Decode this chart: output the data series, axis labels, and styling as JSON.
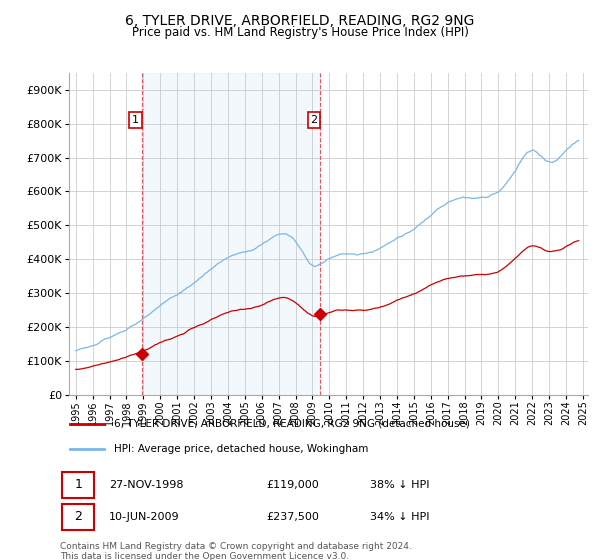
{
  "title": "6, TYLER DRIVE, ARBORFIELD, READING, RG2 9NG",
  "subtitle": "Price paid vs. HM Land Registry's House Price Index (HPI)",
  "legend_line1": "6, TYLER DRIVE, ARBORFIELD, READING, RG2 9NG (detached house)",
  "legend_line2": "HPI: Average price, detached house, Wokingham",
  "footer": "Contains HM Land Registry data © Crown copyright and database right 2024.\nThis data is licensed under the Open Government Licence v3.0.",
  "purchase1_date": "27-NOV-1998",
  "purchase1_price": 119000,
  "purchase1_note": "38% ↓ HPI",
  "purchase2_date": "10-JUN-2009",
  "purchase2_price": 237500,
  "purchase2_note": "34% ↓ HPI",
  "purchase1_year": 1998.9,
  "purchase2_year": 2009.45,
  "hpi_color": "#7ab8e8",
  "price_color": "#cc0000",
  "shade_color": "#ddeeff",
  "background_color": "#ffffff",
  "grid_color": "#cccccc",
  "ylim": [
    0,
    950000
  ],
  "yticks": [
    0,
    100000,
    200000,
    300000,
    400000,
    500000,
    600000,
    700000,
    800000,
    900000
  ]
}
